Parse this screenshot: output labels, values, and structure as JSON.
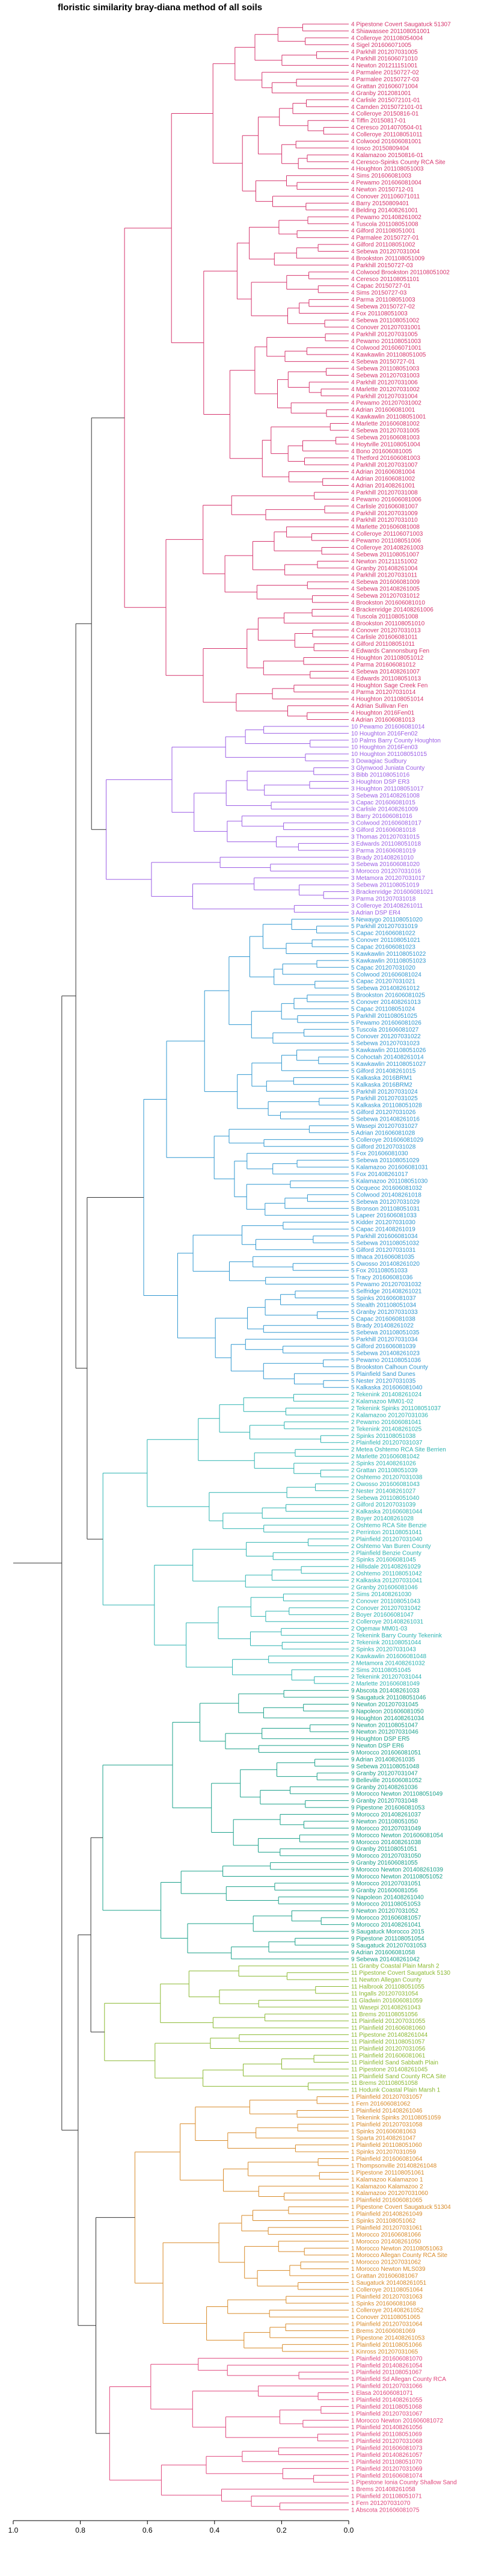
{
  "chart_data": {
    "type": "dendrogram",
    "title": "floristic similarity bray-diana  method of all soils",
    "orientation": "horizontal",
    "x_ticks": [
      1.0,
      0.8,
      0.6,
      0.4,
      0.2,
      0.0
    ],
    "x_tick_labels": [
      "1.0",
      "0.8",
      "0.6",
      "0.4",
      "0.2",
      "0.0"
    ],
    "xlim": [
      1.0,
      0.0
    ],
    "groups": [
      {
        "color": "#d6336c",
        "leaves": [
          "4 Pipestone Covert Saugatuck 51307",
          "4 Shiawassee 201108051001",
          "4 Colleroye 201108054004",
          "4 Sigel 201606071005",
          "4 Parkhill 201207031005",
          "4 Parkhill 201606071010",
          "4 Newton 201211151001",
          "4 Parmalee 20150727-02",
          "4 Parmalee 20150727-03",
          "4 Grattan 201606071004",
          "4 Granby 2012081001",
          "4 Carlisle 2015072101-01",
          "4 Camden 2015072101-01",
          "4 Colleroye 20150816-01",
          "4 Tiffin 20150817-01",
          "4 Ceresco 2014070504-01",
          "4 Colleroye 201108051011",
          "4 Colwood 201606081001",
          "4 Iosco 20150809404",
          "4 Kalamazoo 20150816-01",
          "4 Ceresco-Spinks County RCA Site",
          "4 Houghton 201108051003",
          "4 Sims 201606081003",
          "4 Pewamo 201606081004",
          "4 Newton 20150712-01",
          "4 Conover 201106071011",
          "4 Barry 20150809401",
          "4 Belding 201408261001",
          "4 Pewamo 201408261002",
          "4 Tuscola 201108051008",
          "4 Gilford 201108051001",
          "4 Parmalee 20150727-01",
          "4 Gilford 201108051002",
          "4 Sebewa 201207031004",
          "4 Brookston 201108051009",
          "4 Parkhill 20150727-03",
          "4 Colwood Brookston 201108051002",
          "4 Ceresco 201108051101",
          "4 Capac 20150727-01",
          "4 Sims 20150727-03",
          "4 Parma 201108051003",
          "4 Sebewa 20150727-02",
          "4 Fox 201108051003",
          "4 Sebewa 201108051002",
          "4 Conover 201207031001",
          "4 Parkhill 201207031005",
          "4 Pewamo 201108051003",
          "4 Colwood 201606071001",
          "4 Kawkawlin 201108051005",
          "4 Sebewa 20150727-01",
          "4 Sebewa 201108051003",
          "4 Sebewa 201207031003",
          "4 Parkhill 201207031006",
          "4 Marlette 201207031002",
          "4 Parkhill 201207031004",
          "4 Pewamo 201207031002",
          "4 Adrian 201606081001",
          "4 Kawkawlin 201108051001",
          "4 Marlette 201606081002",
          "4 Sebewa 201207031005",
          "4 Sebewa 201606081003",
          "4 Hoytville 201108051004",
          "4 Bono 201606081005",
          "4 Thetford 201606081003",
          "4 Parkhill 201207031007",
          "4 Adrian 201606081004",
          "4 Adrian 201606081002",
          "4 Adrian 201408261001",
          "4 Parkhill 201207031008",
          "4 Pewamo 201606081006",
          "4 Carlisle 201606081007",
          "4 Parkhill 201207031009",
          "4 Parkhill 201207031010",
          "4 Marlette 201606081008",
          "4 Colleroye 201106071003",
          "4 Pewamo 201108051006",
          "4 Colleroye 201408261003",
          "4 Sebewa 201108051007",
          "4 Newton 201211151002",
          "4 Granby 201408261004",
          "4 Parkhill 201207031011",
          "4 Sebewa 201606081009",
          "4 Sebewa 201408261005",
          "4 Sebewa 201207031012",
          "4 Brookston 201606081010",
          "4 Brackenridge 201408261006",
          "4 Tuscola 201108051008",
          "4 Brookston 201108051010",
          "4 Conover 201207031013",
          "4 Carlisle 201606081011",
          "4 Gilford 201108051011",
          "4 Edwards Cannonsburg Fen",
          "4 Houghton 201108051012",
          "4 Parma 201606081012",
          "4 Sebewa 201408261007",
          "4 Edwards 201108051013",
          "4 Houghton Sage Creek Fen",
          "4 Parma 201207031014",
          "4 Houghton 201108051014",
          "4 Adrian Sullivan Fen",
          "4 Houghton 2016Fen01",
          "4 Adrian 201606081013"
        ]
      },
      {
        "color": "#9b5de5",
        "leaves": [
          "10 Pewamo 201606081014",
          "10 Houghton 2016Fen02",
          "10 Palms Barry County Houghton",
          "10 Houghton 2016Fen03",
          "10 Houghton 201108051015",
          "3 Dowagiac Sudbury",
          "3 Glynwood Juniata County",
          "3 Bibb 201108051016",
          "3 Houghton DSP ER3",
          "3 Houghton 201108051017",
          "3 Sebewa 201408261008",
          "3 Capac 201606081015",
          "3 Carlisle 201408261009",
          "3 Barry 201606081016",
          "3 Colwood 201606081017",
          "3 Gilford 201606081018",
          "3 Thomas 201207031015",
          "3 Edwards 201108051018",
          "3 Parma 201606081019",
          "3 Brady 201408261010",
          "3 Sebewa 201606081020",
          "3 Morocco 201207031016",
          "3 Metamora 201207031017",
          "3 Sebewa 201108051019",
          "3 Brackenridge 201606081021",
          "3 Parma 201207031018",
          "3 Colleroye 201408261011",
          "3 Adrian DSP ER4"
        ]
      },
      {
        "color": "#2f97d0",
        "leaves": [
          "5 Newaygo 201108051020",
          "5 Parkhill 201207031019",
          "5 Capac 201606081022",
          "5 Conover 201108051021",
          "5 Capac 201606081023",
          "5 Kawkawlin 201108051022",
          "5 Kawkawlin 201108051023",
          "5 Capac 201207031020",
          "5 Colwood 201606081024",
          "5 Capac 201207031021",
          "5 Sebewa 201408261012",
          "5 Brookston 201606081025",
          "5 Conover 201408261013",
          "5 Capac 201108051024",
          "5 Parkhill 201108051025",
          "5 Pewamo 201606081026",
          "5 Tuscola 201606081027",
          "5 Conover 201207031022",
          "5 Sebewa 201207031023",
          "5 Kawkawlin 201108051026",
          "5 Cohoctah 201408261014",
          "5 Kawkawlin 201108051027",
          "5 Gilford 201408261015",
          "5 Kalkaska 2016BRM1",
          "5 Kalkaska 2016BRM2",
          "5 Parkhill 201207031024",
          "5 Parkhill 201207031025",
          "5 Kalkaska 201108051028",
          "5 Gilford 201207031026",
          "5 Sebewa 201408261016",
          "5 Wasepi 201207031027",
          "5 Adrian 201606081028",
          "5 Colleroye 201606081029",
          "5 Gilford 201207031028",
          "5 Fox 201606081030",
          "5 Sebewa 201108051029",
          "5 Kalamazoo 201606081031",
          "5 Fox 201408261017",
          "5 Kalamazoo 201108051030",
          "5 Ocqueoc 201606081032",
          "5 Colwood 201408261018",
          "5 Sebewa 201207031029",
          "5 Bronson 201108051031",
          "5 Lapeer 201606081033",
          "5 Kidder 201207031030",
          "5 Capac 201408261019",
          "5 Parkhill 201606081034",
          "5 Sebewa 201108051032",
          "5 Gilford 201207031031",
          "5 Ithaca 201606081035",
          "5 Owosso 201408261020",
          "5 Fox 201108051033",
          "5 Tracy 201606081036",
          "5 Pewamo 201207031032",
          "5 Selfridge 201408261021",
          "5 Spinks 201606081037",
          "5 Stealth 201108051034",
          "5 Granby 201207031033",
          "5 Capac 201606081038",
          "5 Brady 201408261022",
          "5 Sebewa 201108051035",
          "5 Parkhill 201207031034",
          "5 Gilford 201606081039",
          "5 Sebewa 201408261023",
          "5 Pewamo 201108051036",
          "5 Brookston Calhoun County",
          "5 Plainfield Sand Dunes",
          "5 Nester 201207031035",
          "5 Kalkaska 201606081040"
        ]
      },
      {
        "color": "#2bb3b1",
        "leaves": [
          "2 Tekenink 201408261024",
          "2 Kalamazoo MM01-02",
          "2 Tekenink Spinks 201108051037",
          "2 Kalamazoo 201207031036",
          "2 Pewamo 201606081041",
          "2 Tekenink 201408261025",
          "2 Spinks 201108051038",
          "2 Plainfield 201207031037",
          "2 Metea Oshtemo RCA Site Berrien",
          "2 Marlette 201606081042",
          "2 Spinks 201408261026",
          "2 Grattan 201108051039",
          "2 Oshtemo 201207031038",
          "2 Owosso 201606081043",
          "2 Nester 201408261027",
          "2 Sebewa 201108051040",
          "2 Gilford 201207031039",
          "2 Kalkaska 201606081044",
          "2 Boyer 201408261028",
          "2 Oshtemo RCA Site Benzie",
          "2 Perrinton 201108051041",
          "2 Plainfield 201207031040",
          "2 Oshtemo Van Buren County",
          "2 Plainfield Benzie County",
          "2 Spinks 201606081045",
          "2 Hillsdale 201408261029",
          "2 Oshtemo 201108051042",
          "2 Kalkaska 201207031041",
          "2 Granby 201606081046",
          "2 Sims 201408261030",
          "2 Conover 201108051043",
          "2 Conover 201207031042",
          "2 Boyer 201606081047",
          "2 Colleroye 201408261031",
          "2 Ogemaw MM01-03",
          "2 Tekenink Barry County Tekenink",
          "2 Tekenink 201108051044",
          "2 Spinks 201207031043",
          "2 Kawkawlin 201606081048",
          "2 Metamora 201408261032",
          "2 Sims 201108051045",
          "2 Tekenink 201207031044",
          "2 Marlette 201606081049"
        ]
      },
      {
        "color": "#1aa08a",
        "leaves": [
          "9 Abscota 201408261033",
          "9 Saugatuck 201108051046",
          "9 Newton 201207031045",
          "9 Napoleon 201606081050",
          "9 Houghton 201408261034",
          "9 Newton 201108051047",
          "9 Newton 201207031046",
          "9 Houghton DSP ER5",
          "9 Newton DSP ER6",
          "9 Morocco 201606081051",
          "9 Adrian 201408261035",
          "9 Sebewa 201108051048",
          "9 Granby 201207031047",
          "9 Belleville 201606081052",
          "9 Granby 201408261036",
          "9 Morocco Newton 201108051049",
          "9 Granby 201207031048",
          "9 Pipestone 201606081053",
          "9 Morocco 201408261037",
          "9 Newton 201108051050",
          "9 Morocco 201207031049",
          "9 Morocco Newton 201606081054",
          "9 Morocco 201408261038",
          "9 Granby 201108051051",
          "9 Morocco 201207031050",
          "9 Granby 201606081055",
          "9 Morocco Newton 201408261039",
          "9 Morocco Newton 201108051052",
          "9 Morocco 201207031051",
          "9 Granby 201606081056",
          "9 Napoleon 201408261040",
          "9 Morocco 201108051053",
          "9 Newton 201207031052",
          "9 Morocco 201606081057",
          "9 Morocco 201408261041",
          "9 Saugatuck Morocco 2015",
          "9 Pipestone 201108051054",
          "9 Saugatuck 201207031053",
          "9 Adrian 201606081058",
          "9 Sebewa 201408261042"
        ]
      },
      {
        "color": "#8ab830",
        "leaves": [
          "11 Granby Coastal Plain Marsh 2",
          "11 Pipestone Covert Saugatuck 5130",
          "11 Newton Allegan County",
          "11 Halbrook 201108051055",
          "11 Ingalls 201207031054",
          "11 Gladwin 201606081059",
          "11 Wasepi 201408261043",
          "11 Brems 201108051056",
          "11 Plainfield 201207031055",
          "11 Plainfield 201606081060",
          "11 Pipestone 201408261044",
          "11 Plainfield 201108051057",
          "11 Plainfield 201207031056",
          "11 Plainfield 201606081061",
          "11 Plainfield Sand Sabbath Plain",
          "11 Pipestone 201408261045",
          "11 Plainfield Sand County RCA Site",
          "11 Brems 201108051058",
          "11 Hodunk Coastal Plain Marsh 1"
        ]
      },
      {
        "color": "#d88a28",
        "leaves": [
          "1 Plainfield 201207031057",
          "1 Fern 201606081062",
          "1 Plainfield 201408261046",
          "1 Tekenink Spinks 201108051059",
          "1 Plainfield 201207031058",
          "1 Spinks 201606081063",
          "1 Sparta 201408261047",
          "1 Plainfield 201108051060",
          "1 Spinks 201207031059",
          "1 Plainfield 201606081064",
          "1 Thompsonville 201408261048",
          "1 Pipestone 201108051061",
          "1 Kalamazoo Kalamazoo 1",
          "1 Kalamazoo Kalamazoo 2",
          "1 Kalamazoo 201207031060",
          "1 Plainfield 201606081065",
          "1 Pipestone Covert Saugatuck 51304",
          "1 Plainfield 201408261049",
          "1 Spinks 201108051062",
          "1 Plainfield 201207031061",
          "1 Morocco 201606081066",
          "1 Morocco 201408261050",
          "1 Morocco Newton 201108051063",
          "1 Morocco Allegan County RCA Site",
          "1 Morocco 201207031062",
          "1 Morocco Newton MLS039",
          "1 Grattan 201606081067",
          "1 Saugatuck 201408261051",
          "1 Colleroye 201108051064",
          "1 Plainfield 201207031063",
          "1 Spinks 201606081068",
          "1 Colleroye 201408261052",
          "1 Conover 201108051065",
          "1 Plainfield 201207031064",
          "1 Brems 201606081069",
          "1 Pipestone 201408261053",
          "1 Plainfield 201108051066",
          "1 Kinross 201207031065"
        ]
      },
      {
        "color": "#e0457b",
        "leaves": [
          "1 Plainfield 201606081070",
          "1 Plainfield 201408261054",
          "1 Plainfield 201108051067",
          "1 Plainfield Sd Allegan County RCA",
          "1 Plainfield 201207031066",
          "1 Elasa 201606081071",
          "1 Plainfield 201408261055",
          "1 Plainfield 201108051068",
          "1 Plainfield 201207031067",
          "1 Morocco Newton 201606081072",
          "1 Plainfield 201408261056",
          "1 Plainfield 201108051069",
          "1 Plainfield 201207031068",
          "1 Plainfield 201606081073",
          "1 Plainfield 201408261057",
          "1 Plainfield 201108051070",
          "1 Plainfield 201207031069",
          "1 Plainfield 201606081074",
          "1 Pipestone Ionia County Shallow Sand",
          "1 Brems 201408261058",
          "1 Plainfield 201108051071",
          "1 Fern 201207031070",
          "1 Abscota 201606081075"
        ]
      }
    ]
  }
}
